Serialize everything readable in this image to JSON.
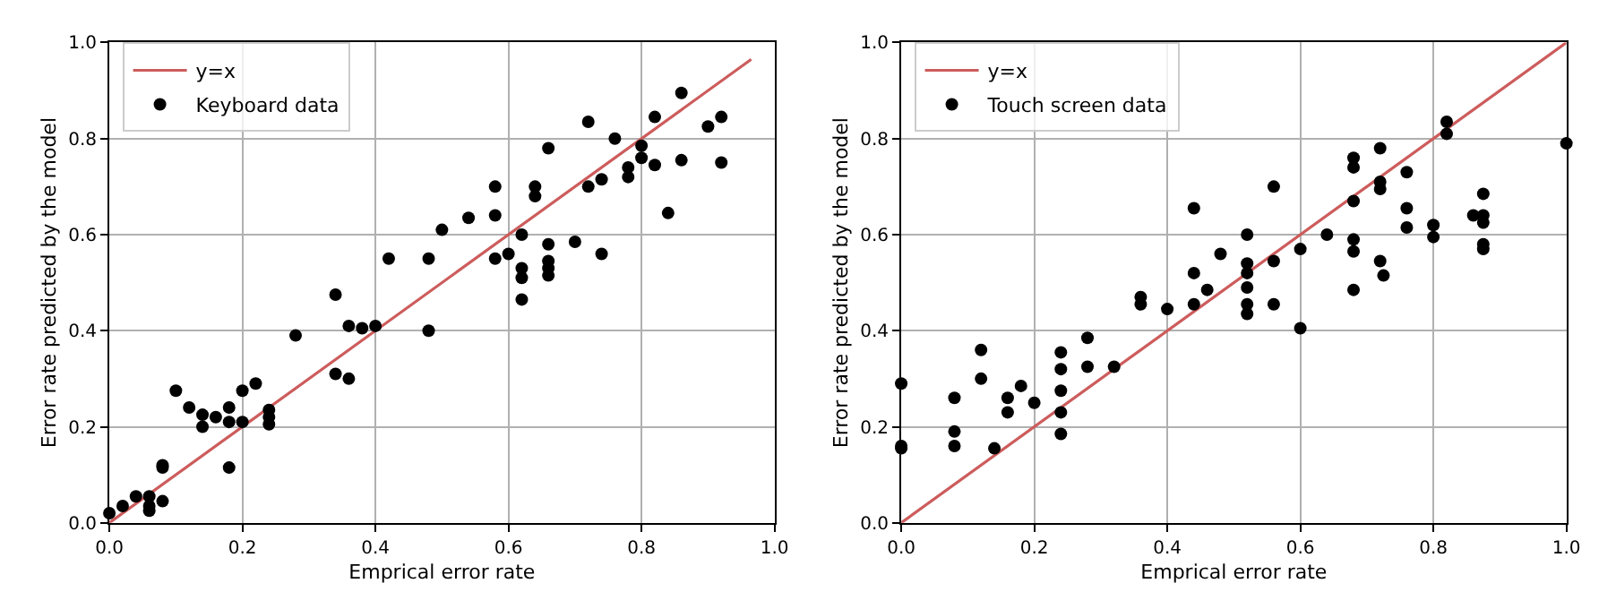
{
  "chart_data": [
    {
      "type": "scatter",
      "xlabel": "Emprical error rate",
      "ylabel": "Error rate predicted by the model",
      "xlim": [
        0,
        1
      ],
      "ylim": [
        0,
        1
      ],
      "xticks": [
        {
          "value": 0,
          "label": "0.0"
        },
        {
          "value": 0.2,
          "label": "0.2"
        },
        {
          "value": 0.4,
          "label": "0.4"
        },
        {
          "value": 0.6,
          "label": "0.6"
        },
        {
          "value": 0.8,
          "label": "0.8"
        },
        {
          "value": 1,
          "label": "1.0"
        }
      ],
      "yticks": [
        {
          "value": 0,
          "label": "0.0"
        },
        {
          "value": 0.2,
          "label": "0.2"
        },
        {
          "value": 0.4,
          "label": "0.4"
        },
        {
          "value": 0.6,
          "label": "0.6"
        },
        {
          "value": 0.8,
          "label": "0.8"
        },
        {
          "value": 1,
          "label": "1.0"
        }
      ],
      "grid": true,
      "legend": "top left",
      "series": [
        {
          "name": "y=x",
          "type": "line",
          "marker": "none",
          "color": "#cd5c5c",
          "x": [
            0,
            0.965
          ],
          "values": [
            0,
            0.965
          ]
        },
        {
          "name": "Keyboard data",
          "marker": "circle",
          "color": "#000000",
          "x": [
            0,
            0.02,
            0.04,
            0.06,
            0.06,
            0.06,
            0.08,
            0.08,
            0.08,
            0.1,
            0.12,
            0.14,
            0.14,
            0.16,
            0.18,
            0.18,
            0.18,
            0.2,
            0.2,
            0.22,
            0.24,
            0.24,
            0.24,
            0.28,
            0.34,
            0.34,
            0.36,
            0.36,
            0.38,
            0.4,
            0.42,
            0.48,
            0.48,
            0.5,
            0.54,
            0.58,
            0.58,
            0.58,
            0.6,
            0.62,
            0.62,
            0.62,
            0.62,
            0.64,
            0.64,
            0.66,
            0.66,
            0.66,
            0.66,
            0.66,
            0.7,
            0.72,
            0.72,
            0.74,
            0.74,
            0.76,
            0.78,
            0.78,
            0.8,
            0.8,
            0.82,
            0.82,
            0.84,
            0.86,
            0.86,
            0.9,
            0.92,
            0.92
          ],
          "values": [
            0.02,
            0.035,
            0.055,
            0.055,
            0.035,
            0.025,
            0.045,
            0.12,
            0.115,
            0.275,
            0.24,
            0.2,
            0.225,
            0.22,
            0.21,
            0.115,
            0.24,
            0.21,
            0.275,
            0.29,
            0.235,
            0.22,
            0.205,
            0.39,
            0.475,
            0.31,
            0.41,
            0.3,
            0.405,
            0.41,
            0.55,
            0.55,
            0.4,
            0.61,
            0.635,
            0.7,
            0.64,
            0.55,
            0.56,
            0.6,
            0.53,
            0.51,
            0.465,
            0.7,
            0.68,
            0.78,
            0.58,
            0.545,
            0.53,
            0.515,
            0.585,
            0.835,
            0.7,
            0.715,
            0.56,
            0.8,
            0.74,
            0.72,
            0.785,
            0.76,
            0.845,
            0.745,
            0.645,
            0.895,
            0.755,
            0.825,
            0.845,
            0.75
          ]
        }
      ]
    },
    {
      "type": "scatter",
      "xlabel": "Emprical error rate",
      "ylabel": "Error rate predicted by the model",
      "xlim": [
        0,
        1
      ],
      "ylim": [
        0,
        1
      ],
      "xticks": [
        {
          "value": 0,
          "label": "0.0"
        },
        {
          "value": 0.2,
          "label": "0.2"
        },
        {
          "value": 0.4,
          "label": "0.4"
        },
        {
          "value": 0.6,
          "label": "0.6"
        },
        {
          "value": 0.8,
          "label": "0.8"
        },
        {
          "value": 1,
          "label": "1.0"
        }
      ],
      "yticks": [
        {
          "value": 0,
          "label": "0.0"
        },
        {
          "value": 0.2,
          "label": "0.2"
        },
        {
          "value": 0.4,
          "label": "0.4"
        },
        {
          "value": 0.6,
          "label": "0.6"
        },
        {
          "value": 0.8,
          "label": "0.8"
        },
        {
          "value": 1,
          "label": "1.0"
        }
      ],
      "grid": true,
      "legend": "top left",
      "series": [
        {
          "name": "y=x",
          "type": "line",
          "marker": "none",
          "color": "#cd5c5c",
          "x": [
            0,
            1
          ],
          "values": [
            0,
            1
          ]
        },
        {
          "name": "Touch screen data",
          "marker": "circle",
          "color": "#000000",
          "x": [
            0,
            0,
            0,
            0.08,
            0.08,
            0.08,
            0.12,
            0.12,
            0.14,
            0.16,
            0.16,
            0.18,
            0.2,
            0.24,
            0.24,
            0.24,
            0.24,
            0.24,
            0.28,
            0.28,
            0.32,
            0.36,
            0.36,
            0.4,
            0.44,
            0.44,
            0.44,
            0.46,
            0.48,
            0.52,
            0.52,
            0.52,
            0.52,
            0.52,
            0.52,
            0.56,
            0.56,
            0.56,
            0.6,
            0.6,
            0.64,
            0.68,
            0.68,
            0.68,
            0.68,
            0.68,
            0.68,
            0.72,
            0.72,
            0.72,
            0.72,
            0.725,
            0.76,
            0.76,
            0.76,
            0.8,
            0.8,
            0.82,
            0.82,
            0.86,
            0.875,
            0.875,
            0.875,
            0.875,
            0.875,
            1.0
          ],
          "values": [
            0.29,
            0.16,
            0.155,
            0.26,
            0.19,
            0.16,
            0.36,
            0.3,
            0.155,
            0.26,
            0.23,
            0.285,
            0.25,
            0.355,
            0.32,
            0.275,
            0.23,
            0.185,
            0.385,
            0.325,
            0.325,
            0.47,
            0.455,
            0.445,
            0.655,
            0.52,
            0.455,
            0.485,
            0.56,
            0.6,
            0.54,
            0.52,
            0.49,
            0.455,
            0.435,
            0.7,
            0.545,
            0.455,
            0.57,
            0.405,
            0.6,
            0.76,
            0.74,
            0.67,
            0.59,
            0.565,
            0.485,
            0.78,
            0.71,
            0.695,
            0.545,
            0.515,
            0.73,
            0.655,
            0.615,
            0.62,
            0.595,
            0.835,
            0.81,
            0.64,
            0.685,
            0.64,
            0.625,
            0.58,
            0.57,
            0.79
          ]
        }
      ]
    }
  ]
}
